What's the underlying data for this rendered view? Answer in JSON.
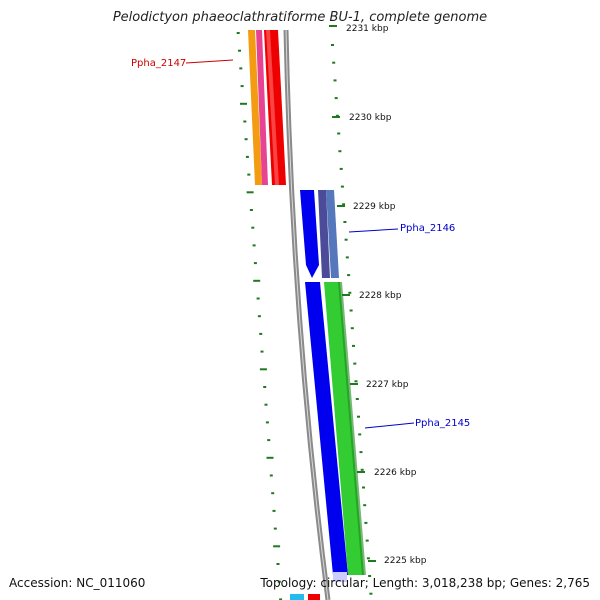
{
  "title": "Pelodictyon phaeoclathratiforme BU-1, complete genome",
  "footer": {
    "accession": "Accession: NC_011060",
    "summary": "Topology: circular; Length: 3,018,238 bp; Genes: 2,765"
  },
  "colors": {
    "backbone": "#8a8a8a",
    "tick": "#1f7a1f",
    "forward_label": "#0000cc",
    "reverse_label": "#cc0000"
  },
  "ticks": [
    {
      "label": "2231 kbp"
    },
    {
      "label": "2230 kbp"
    },
    {
      "label": "2229 kbp"
    },
    {
      "label": "2228 kbp"
    },
    {
      "label": "2227 kbp"
    },
    {
      "label": "2226 kbp"
    },
    {
      "label": "2225 kbp"
    }
  ],
  "genes": [
    {
      "name": "Ppha_2147",
      "color": "#cc0000"
    },
    {
      "name": "Ppha_2146",
      "color": "#0000cc"
    },
    {
      "name": "Ppha_2145",
      "color": "#0000cc"
    }
  ]
}
